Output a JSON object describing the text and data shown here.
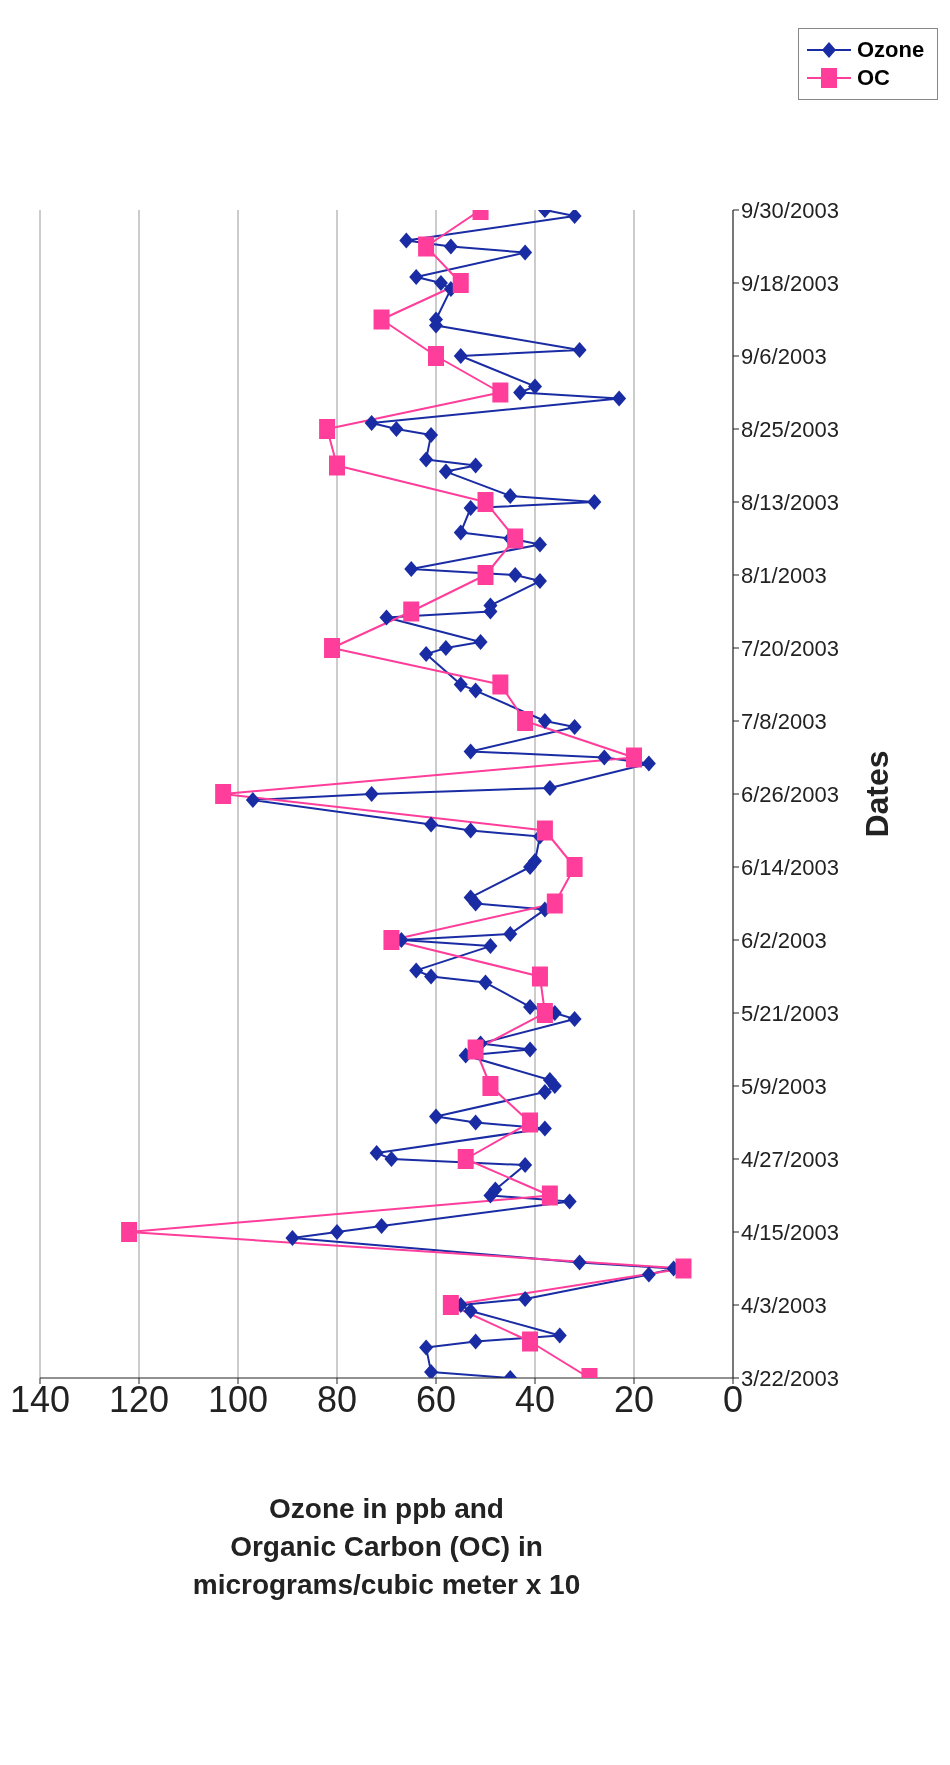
{
  "chart_data": {
    "type": "line",
    "orientation": "horizontal",
    "ylabel": "Dates",
    "xlabel": "Ozone in ppb and\nOrganic Carbon (OC) in\nmicrograms/cubic meter x 10",
    "ylim": [
      "2003-03-22",
      "2003-09-30"
    ],
    "yticks": [
      {
        "value": "2003-03-22",
        "label": "3/22/2003"
      },
      {
        "value": "2003-04-03",
        "label": "4/3/2003"
      },
      {
        "value": "2003-04-15",
        "label": "4/15/2003"
      },
      {
        "value": "2003-04-27",
        "label": "4/27/2003"
      },
      {
        "value": "2003-05-09",
        "label": "5/9/2003"
      },
      {
        "value": "2003-05-21",
        "label": "5/21/2003"
      },
      {
        "value": "2003-06-02",
        "label": "6/2/2003"
      },
      {
        "value": "2003-06-14",
        "label": "6/14/2003"
      },
      {
        "value": "2003-06-26",
        "label": "6/26/2003"
      },
      {
        "value": "2003-07-08",
        "label": "7/8/2003"
      },
      {
        "value": "2003-07-20",
        "label": "7/20/2003"
      },
      {
        "value": "2003-08-01",
        "label": "8/1/2003"
      },
      {
        "value": "2003-08-13",
        "label": "8/13/2003"
      },
      {
        "value": "2003-08-25",
        "label": "8/25/2003"
      },
      {
        "value": "2003-09-06",
        "label": "9/6/2003"
      },
      {
        "value": "2003-09-18",
        "label": "9/18/2003"
      },
      {
        "value": "2003-09-30",
        "label": "9/30/2003"
      }
    ],
    "xlim": [
      140,
      0
    ],
    "xticks": [
      0,
      20,
      40,
      60,
      80,
      100,
      120,
      140
    ],
    "grid": "x",
    "legend": "top right",
    "line_style": "solid",
    "series": [
      {
        "name": "Ozone",
        "color": "#1a2ca3",
        "marker": "diamond",
        "x": [
          "2003-03-22",
          "2003-03-23",
          "2003-03-27",
          "2003-03-28",
          "2003-03-29",
          "2003-04-02",
          "2003-04-03",
          "2003-04-04",
          "2003-04-08",
          "2003-04-09",
          "2003-04-10",
          "2003-04-14",
          "2003-04-15",
          "2003-04-16",
          "2003-04-20",
          "2003-04-21",
          "2003-04-22",
          "2003-04-26",
          "2003-04-27",
          "2003-04-28",
          "2003-05-02",
          "2003-05-03",
          "2003-05-04",
          "2003-05-08",
          "2003-05-09",
          "2003-05-10",
          "2003-05-14",
          "2003-05-15",
          "2003-05-16",
          "2003-05-20",
          "2003-05-21",
          "2003-05-22",
          "2003-05-26",
          "2003-05-27",
          "2003-05-28",
          "2003-06-01",
          "2003-06-02",
          "2003-06-03",
          "2003-06-07",
          "2003-06-08",
          "2003-06-09",
          "2003-06-14",
          "2003-06-15",
          "2003-06-19",
          "2003-06-20",
          "2003-06-21",
          "2003-06-25",
          "2003-06-26",
          "2003-06-27",
          "2003-07-01",
          "2003-07-02",
          "2003-07-03",
          "2003-07-07",
          "2003-07-08",
          "2003-07-13",
          "2003-07-14",
          "2003-07-19",
          "2003-07-20",
          "2003-07-21",
          "2003-07-25",
          "2003-07-26",
          "2003-07-27",
          "2003-07-31",
          "2003-08-01",
          "2003-08-02",
          "2003-08-06",
          "2003-08-07",
          "2003-08-08",
          "2003-08-12",
          "2003-08-13",
          "2003-08-14",
          "2003-08-18",
          "2003-08-19",
          "2003-08-20",
          "2003-08-24",
          "2003-08-25",
          "2003-08-26",
          "2003-08-30",
          "2003-08-31",
          "2003-09-01",
          "2003-09-06",
          "2003-09-07",
          "2003-09-11",
          "2003-09-12",
          "2003-09-17",
          "2003-09-18",
          "2003-09-19",
          "2003-09-23",
          "2003-09-24",
          "2003-09-25",
          "2003-09-29",
          "2003-09-30"
        ],
        "values": [
          45,
          61,
          62,
          52,
          35,
          53,
          55,
          42,
          17,
          12,
          31,
          89,
          80,
          71,
          33,
          49,
          48,
          42,
          69,
          72,
          38,
          52,
          60,
          38,
          36,
          37,
          54,
          41,
          51,
          32,
          36,
          41,
          50,
          61,
          64,
          49,
          67,
          45,
          38,
          52,
          53,
          41,
          40,
          39,
          53,
          61,
          97,
          73,
          37,
          17,
          26,
          53,
          32,
          38,
          52,
          55,
          62,
          58,
          51,
          70,
          49,
          49,
          39,
          44,
          65,
          39,
          45,
          55,
          53,
          28,
          45,
          58,
          52,
          62,
          61,
          68,
          73,
          23,
          43,
          40,
          55,
          31,
          60,
          60,
          57,
          59,
          64,
          42,
          57,
          66,
          32,
          38
        ]
      },
      {
        "name": "OC",
        "color": "#ff3d9a",
        "marker": "square",
        "x": [
          "2003-03-22",
          "2003-03-28",
          "2003-04-03",
          "2003-04-09",
          "2003-04-15",
          "2003-04-21",
          "2003-04-27",
          "2003-05-03",
          "2003-05-09",
          "2003-05-15",
          "2003-05-21",
          "2003-05-27",
          "2003-06-02",
          "2003-06-08",
          "2003-06-14",
          "2003-06-20",
          "2003-06-26",
          "2003-07-02",
          "2003-07-08",
          "2003-07-14",
          "2003-07-20",
          "2003-07-26",
          "2003-08-01",
          "2003-08-07",
          "2003-08-13",
          "2003-08-19",
          "2003-08-25",
          "2003-08-31",
          "2003-09-06",
          "2003-09-12",
          "2003-09-18",
          "2003-09-24",
          "2003-09-30"
        ],
        "values": [
          29,
          41,
          57,
          10,
          122,
          37,
          54,
          41,
          49,
          52,
          38,
          39,
          69,
          36,
          32,
          38,
          103,
          20,
          42,
          47,
          81,
          65,
          50,
          44,
          50,
          80,
          82,
          47,
          60,
          71,
          55,
          62,
          51
        ]
      }
    ]
  }
}
